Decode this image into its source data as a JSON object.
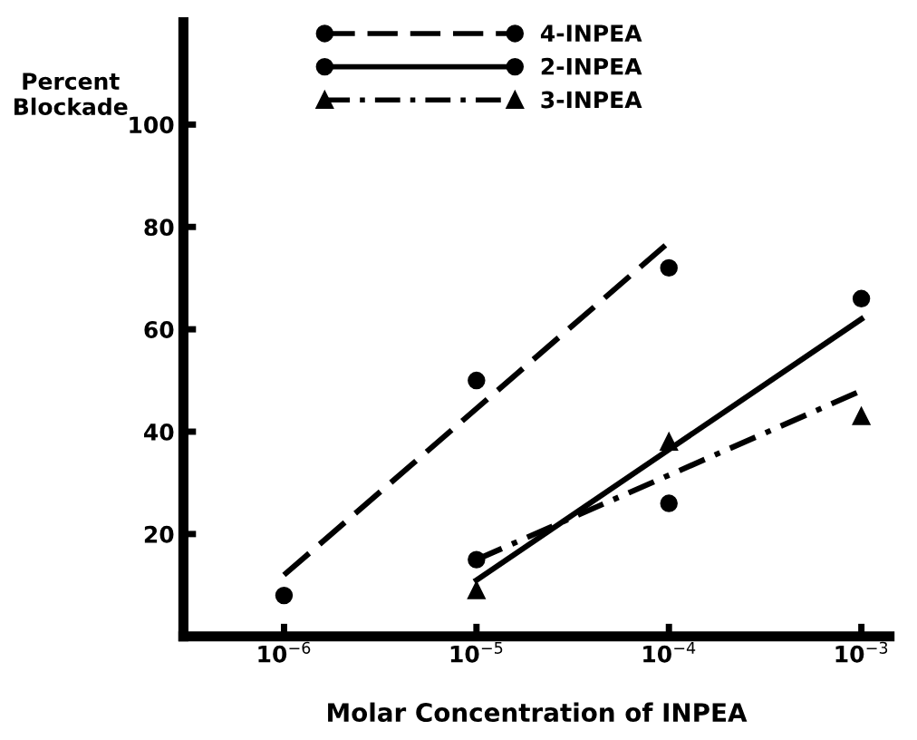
{
  "chart_data": {
    "type": "scatter",
    "xlabel": "Molar Concentration of INPEA",
    "ylabel": "Percent\nBlockade",
    "log": "x",
    "xlim": [
      3e-07,
      0.0014
    ],
    "ylim": [
      0,
      120
    ],
    "xticks": [
      {
        "value": 1e-06,
        "label": "10$^{−6}$"
      },
      {
        "value": 1e-05,
        "label": "10$^{−5}$"
      },
      {
        "value": 0.0001,
        "label": "10$^{−4}$"
      },
      {
        "value": 0.001,
        "label": "10$^{−3}$"
      }
    ],
    "yticks": [
      20,
      40,
      60,
      80,
      100
    ],
    "grid": false,
    "legend": "top",
    "series": [
      {
        "name": "4-INPEA",
        "marker": "circle",
        "color": "#000000",
        "x": [
          1e-06,
          1e-05,
          0.0001
        ],
        "values": [
          8,
          50,
          72
        ]
      },
      {
        "type": "line",
        "marker": "none",
        "line_style": "dashed",
        "color": "#000000",
        "x": [
          1e-06,
          0.0001
        ],
        "values": [
          12,
          77
        ]
      },
      {
        "name": "2-INPEA",
        "marker": "circle",
        "color": "#000000",
        "x": [
          1e-05,
          0.0001,
          0.001
        ],
        "values": [
          15,
          26,
          66
        ]
      },
      {
        "type": "line",
        "marker": "none",
        "line_style": "solid",
        "color": "#000000",
        "x": [
          1e-05,
          0.001
        ],
        "values": [
          11,
          62
        ]
      },
      {
        "name": "3-INPEA",
        "marker": "triangle",
        "color": "#000000",
        "x": [
          1e-05,
          0.0001,
          0.001
        ],
        "values": [
          9,
          38,
          43
        ]
      },
      {
        "type": "line",
        "marker": "none",
        "line_style": "dashdot",
        "color": "#000000",
        "x": [
          1e-05,
          0.001
        ],
        "values": [
          15,
          48
        ]
      }
    ]
  }
}
